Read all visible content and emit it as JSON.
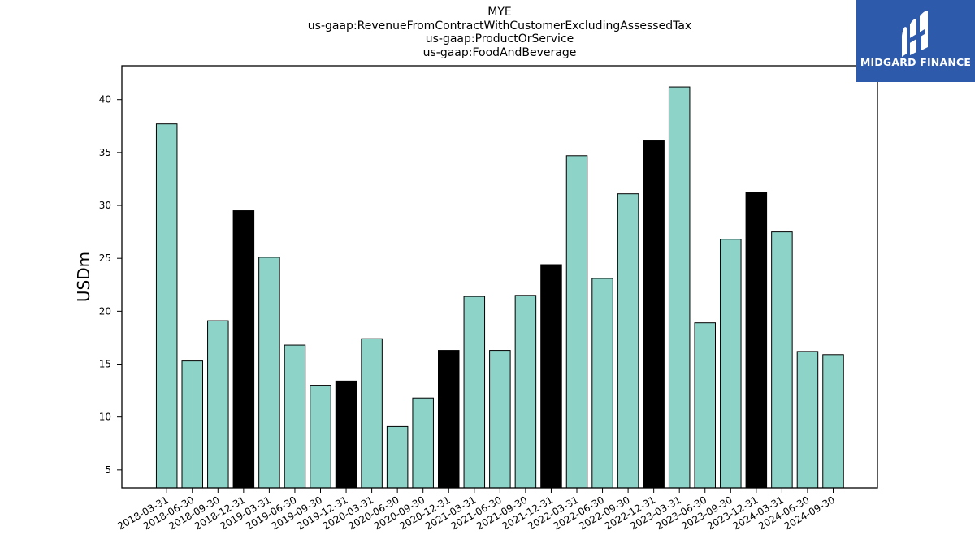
{
  "header": {
    "title_lines": [
      "MYE",
      "us-gaap:RevenueFromContractWithCustomerExcludingAssessedTax",
      "us-gaap:ProductOrService",
      "us-gaap:FoodAndBeverage"
    ]
  },
  "logo": {
    "text": "MIDGARD FINANCE",
    "icon": "midgard-finance-logo-icon",
    "background": "#2d5aaa"
  },
  "chart_data": {
    "type": "bar",
    "title": "MYE\nus-gaap:RevenueFromContractWithCustomerExcludingAssessedTax\nus-gaap:ProductOrService\nus-gaap:FoodAndBeverage",
    "xlabel": "",
    "ylabel": "USDm",
    "ylim": [
      3.3,
      43.2
    ],
    "yticks": [
      5,
      10,
      15,
      20,
      25,
      30,
      35,
      40
    ],
    "grid": false,
    "legend": "none",
    "categories": [
      "2018-03-31",
      "2018-06-30",
      "2018-09-30",
      "2018-12-31",
      "2019-03-31",
      "2019-06-30",
      "2019-09-30",
      "2019-12-31",
      "2020-03-31",
      "2020-06-30",
      "2020-09-30",
      "2020-12-31",
      "2021-03-31",
      "2021-06-30",
      "2021-09-30",
      "2021-12-31",
      "2022-03-31",
      "2022-06-30",
      "2022-09-30",
      "2022-12-31",
      "2023-03-31",
      "2023-06-30",
      "2023-09-30",
      "2023-12-31",
      "2024-03-31",
      "2024-06-30",
      "2024-09-30"
    ],
    "values": [
      37.7,
      15.3,
      19.1,
      29.5,
      25.1,
      16.8,
      13.0,
      13.4,
      17.4,
      9.1,
      11.8,
      16.3,
      21.4,
      16.3,
      21.5,
      24.4,
      34.7,
      23.1,
      31.1,
      36.1,
      41.2,
      18.9,
      26.8,
      31.2,
      27.5,
      16.2,
      15.9
    ],
    "highlighted": [
      false,
      false,
      false,
      true,
      false,
      false,
      false,
      true,
      false,
      false,
      false,
      true,
      false,
      false,
      false,
      true,
      false,
      false,
      false,
      true,
      false,
      false,
      false,
      true,
      false,
      false,
      false
    ],
    "colors": {
      "bar": "#8dd3c7",
      "highlight": "#000000",
      "edge": "#000000"
    }
  }
}
